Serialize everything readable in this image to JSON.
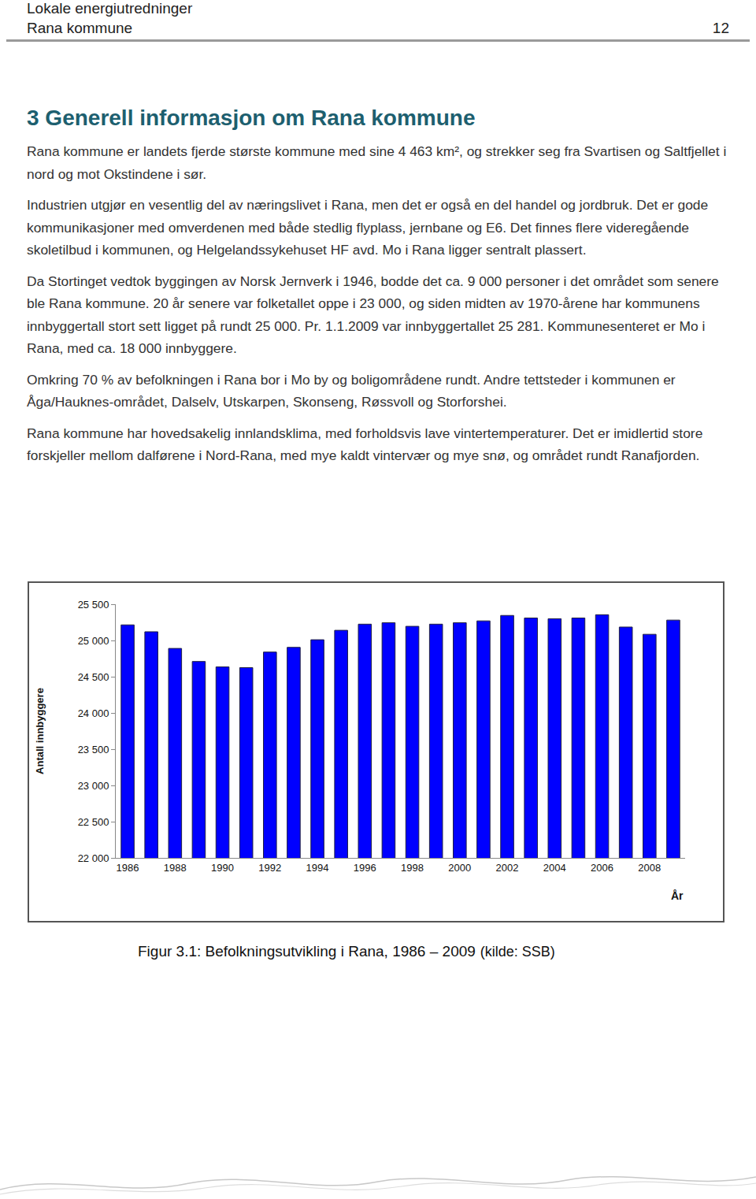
{
  "header": {
    "line1": "Lokale energiutredninger",
    "line2": "Rana kommune",
    "page": "12"
  },
  "heading": "3 Generell informasjon om Rana kommune",
  "paragraphs": [
    "Rana kommune er landets fjerde største kommune med sine 4 463 km², og strekker seg fra Svartisen og Saltfjellet i nord og mot Okstindene i sør.",
    "Industrien utgjør en vesentlig del av næringslivet i Rana, men det er også en del handel og jordbruk. Det er gode kommunikasjoner med omverdenen med både stedlig flyplass, jernbane og E6. Det finnes flere videregående skoletilbud i kommunen, og Helgelandssykehuset HF avd. Mo i Rana ligger sentralt plassert.",
    "Da Stortinget vedtok byggingen av Norsk Jernverk i 1946, bodde det ca. 9 000 personer i det området som senere ble Rana kommune. 20 år senere var folketallet oppe i 23 000, og siden midten av 1970-årene har kommunens innbyggertall stort sett ligget på rundt 25 000. Pr. 1.1.2009 var innbyggertallet 25 281. Kommunesenteret er Mo i Rana, med ca. 18 000 innbyggere.",
    "Omkring 70 % av befolkningen i Rana bor i Mo by og boligområdene rundt. Andre tettsteder i kommunen er Åga/Hauknes-området, Dalselv, Utskarpen, Skonseng, Røssvoll og Storforshei.",
    "Rana kommune har hovedsakelig innlandsklima, med forholdsvis lave vintertemperaturer. Det er imidlertid store forskjeller mellom dalførene i Nord-Rana, med mye kaldt vintervær og mye snø, og området rundt Ranafjorden."
  ],
  "chart_data": {
    "type": "bar",
    "x_label": "År",
    "y_label": "Antall innbyggere",
    "categories": [
      "1986",
      null,
      "1988",
      null,
      "1990",
      null,
      "1992",
      null,
      "1994",
      null,
      "1996",
      null,
      "1998",
      null,
      "2000",
      null,
      "2002",
      null,
      "2004",
      null,
      "2006",
      null,
      "2008",
      null
    ],
    "values": [
      25215,
      25120,
      24890,
      24710,
      24635,
      24625,
      24840,
      24905,
      25010,
      25140,
      25225,
      25245,
      25195,
      25225,
      25245,
      25270,
      25345,
      25310,
      25300,
      25310,
      25355,
      25185,
      25085,
      25281
    ],
    "color": "#0000ff",
    "ylim": [
      22000,
      25500
    ],
    "yticks": [
      {
        "value": 22000,
        "label": "22 000"
      },
      {
        "value": 22500,
        "label": "22 500"
      },
      {
        "value": 23000,
        "label": "23 000"
      },
      {
        "value": 23500,
        "label": "23 500"
      },
      {
        "value": 24000,
        "label": "24 000"
      },
      {
        "value": 24500,
        "label": "24 500"
      },
      {
        "value": 25000,
        "label": "25 000"
      },
      {
        "value": 25500,
        "label": "25 500"
      }
    ],
    "grid": false
  },
  "caption": "Figur 3.1: Befolkningsutvikling i Rana, 1986 – 2009",
  "caption_source": "(kilde: SSB)"
}
